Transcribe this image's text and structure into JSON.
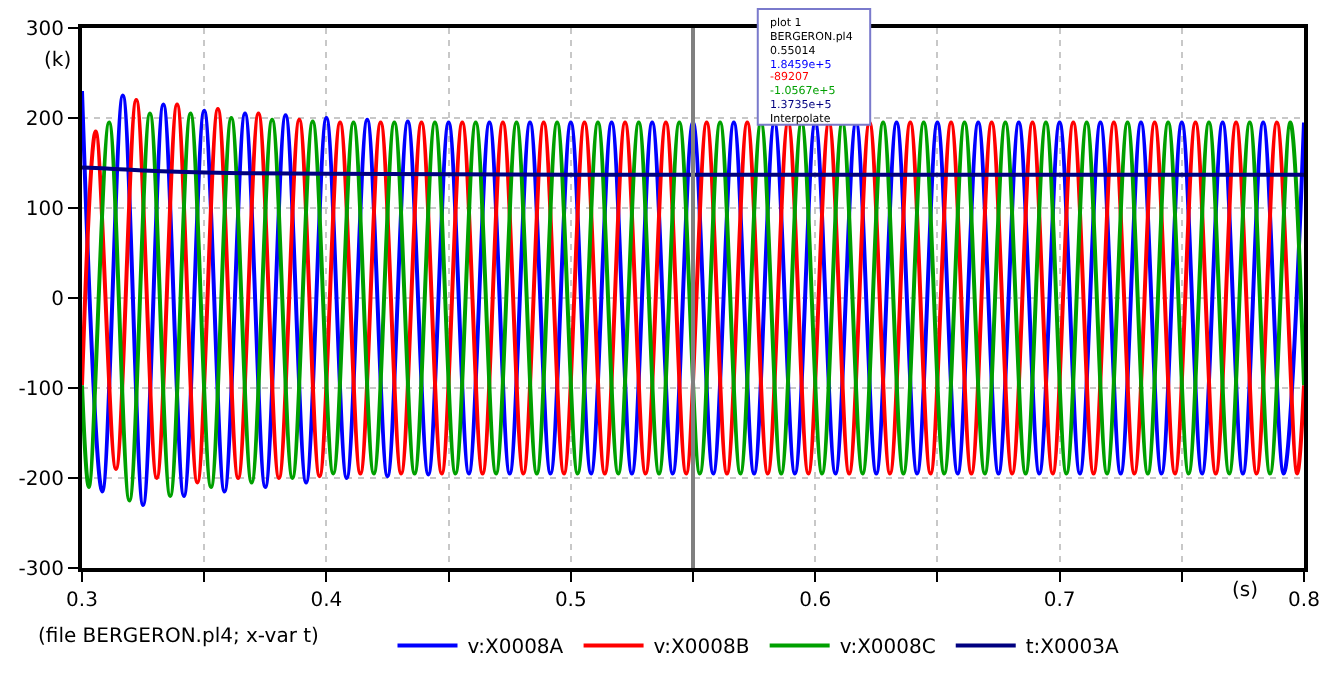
{
  "chart_data": {
    "type": "line",
    "xlabel": "(s)",
    "ylabel": "(k)",
    "xlim": [
      0.3,
      0.8
    ],
    "ylim": [
      -300,
      300
    ],
    "xticks": [
      0.3,
      {
        "value": 0.35,
        "label": null
      },
      0.4,
      {
        "value": 0.45,
        "label": null
      },
      0.5,
      {
        "value": 0.55,
        "label": null
      },
      0.6,
      {
        "value": 0.65,
        "label": null
      },
      0.7,
      {
        "value": 0.75,
        "label": null
      },
      0.8
    ],
    "yticks": [
      -300,
      -200,
      -100,
      0,
      100,
      200,
      300
    ],
    "grid": true,
    "legend": "bottom",
    "line_style": "solid",
    "ref_lines": [
      {
        "axis": "x",
        "value": 0.55,
        "color": "#808080"
      }
    ],
    "annotations": [
      "(file BERGERON.pl4; x-var t)",
      "plot 1",
      "BERGERON.pl4",
      "0.55014",
      "1.8459e+5",
      "-89207",
      "-1.0567e+5",
      "1.3735e+5",
      "Interpolate"
    ],
    "series": [
      {
        "name": "v:X0008A",
        "color": "#0000ff",
        "x": [
          0.3,
          0.3083,
          0.3167,
          0.325,
          0.3333,
          0.3417,
          0.35,
          0.3583,
          0.3667,
          0.375,
          0.3833,
          0.3917,
          0.4,
          0.4083,
          0.4167,
          0.425,
          0.4333,
          0.4417,
          0.45,
          0.4583,
          0.4667,
          0.475,
          0.4833,
          0.4917,
          0.5,
          0.5083,
          0.5167,
          0.525,
          0.5333,
          0.5417,
          0.55,
          0.5583,
          0.5667,
          0.575,
          0.5833,
          0.5917,
          0.6,
          0.6083,
          0.6167,
          0.625,
          0.6333,
          0.6417,
          0.65,
          0.6583,
          0.6667,
          0.675,
          0.6833,
          0.6917,
          0.7,
          0.7083,
          0.7167,
          0.725,
          0.7333,
          0.7417,
          0.75,
          0.7583,
          0.7667,
          0.775,
          0.7833,
          0.7917,
          0.8
        ],
        "values": [
          230,
          -215,
          225,
          -230,
          215,
          -220,
          208,
          -215,
          205,
          -210,
          203,
          -205,
          200,
          -200,
          198,
          -198,
          196,
          -196,
          195,
          -195,
          195,
          -195,
          195,
          -195,
          195,
          -195,
          195,
          -195,
          195,
          -195,
          195,
          -195,
          195,
          -195,
          195,
          -195,
          195,
          -195,
          195,
          -195,
          195,
          -195,
          195,
          -195,
          195,
          -195,
          195,
          -195,
          195,
          -195,
          195,
          -195,
          195,
          -195,
          195,
          -195,
          195,
          -195,
          195,
          -195,
          195
        ]
      },
      {
        "name": "v:X0008B",
        "color": "#ff0000",
        "x": [
          0.3,
          0.3056,
          0.3139,
          0.3222,
          0.3306,
          0.3389,
          0.3472,
          0.3556,
          0.3639,
          0.3722,
          0.3806,
          0.3889,
          0.3972,
          0.4056,
          0.4139,
          0.4222,
          0.4306,
          0.4389,
          0.4472,
          0.4556,
          0.4639,
          0.4722,
          0.4806,
          0.4889,
          0.4972,
          0.5056,
          0.5139,
          0.5222,
          0.5306,
          0.5389,
          0.5472,
          0.5556,
          0.5639,
          0.5722,
          0.5806,
          0.5889,
          0.5972,
          0.6056,
          0.6139,
          0.6222,
          0.6306,
          0.6389,
          0.6472,
          0.6556,
          0.6639,
          0.6722,
          0.6806,
          0.6889,
          0.6972,
          0.7056,
          0.7139,
          0.7222,
          0.7306,
          0.7389,
          0.7472,
          0.7556,
          0.7639,
          0.7722,
          0.7806,
          0.7889,
          0.7972,
          0.8
        ],
        "values": [
          -97,
          185,
          -190,
          220,
          -200,
          215,
          -205,
          210,
          -200,
          205,
          -200,
          198,
          -198,
          195,
          -195,
          195,
          -195,
          195,
          -195,
          195,
          -195,
          195,
          -195,
          195,
          -195,
          195,
          -195,
          195,
          -195,
          195,
          -195,
          195,
          -195,
          195,
          -195,
          195,
          -195,
          195,
          -195,
          195,
          -195,
          195,
          -195,
          195,
          -195,
          195,
          -195,
          195,
          -195,
          195,
          -195,
          195,
          -195,
          195,
          -195,
          195,
          -195,
          195,
          -195,
          195,
          -195,
          -97
        ]
      },
      {
        "name": "v:X0008C",
        "color": "#00a000",
        "x": [
          0.3,
          0.3028,
          0.3111,
          0.3194,
          0.3278,
          0.3361,
          0.3444,
          0.3528,
          0.3611,
          0.3694,
          0.3778,
          0.3861,
          0.3944,
          0.4028,
          0.4111,
          0.4194,
          0.4278,
          0.4361,
          0.4444,
          0.4528,
          0.4611,
          0.4694,
          0.4778,
          0.4861,
          0.4944,
          0.5028,
          0.5111,
          0.5194,
          0.5278,
          0.5361,
          0.5444,
          0.5528,
          0.5611,
          0.5694,
          0.5778,
          0.5861,
          0.5944,
          0.6028,
          0.6111,
          0.6194,
          0.6278,
          0.6361,
          0.6444,
          0.6528,
          0.6611,
          0.6694,
          0.6778,
          0.6861,
          0.6944,
          0.7028,
          0.7111,
          0.7194,
          0.7278,
          0.7361,
          0.7444,
          0.7528,
          0.7611,
          0.7694,
          0.7778,
          0.7861,
          0.7944,
          0.8
        ],
        "values": [
          -97,
          -210,
          195,
          -225,
          205,
          -220,
          205,
          -210,
          200,
          -205,
          198,
          -200,
          196,
          -195,
          195,
          -195,
          195,
          -195,
          195,
          -195,
          195,
          -195,
          195,
          -195,
          195,
          -195,
          195,
          -195,
          195,
          -195,
          195,
          -195,
          195,
          -195,
          195,
          -195,
          195,
          -195,
          195,
          -195,
          195,
          -195,
          195,
          -195,
          195,
          -195,
          195,
          -195,
          195,
          -195,
          195,
          -195,
          195,
          -195,
          195,
          -195,
          195,
          -195,
          195,
          -195,
          195,
          -97
        ]
      },
      {
        "name": "t:X0003A",
        "color": "#000080",
        "x": [
          0.3,
          0.31,
          0.33,
          0.36,
          0.4,
          0.5,
          0.8
        ],
        "values": [
          145,
          144,
          141,
          139,
          138,
          137,
          137
        ]
      }
    ]
  }
}
